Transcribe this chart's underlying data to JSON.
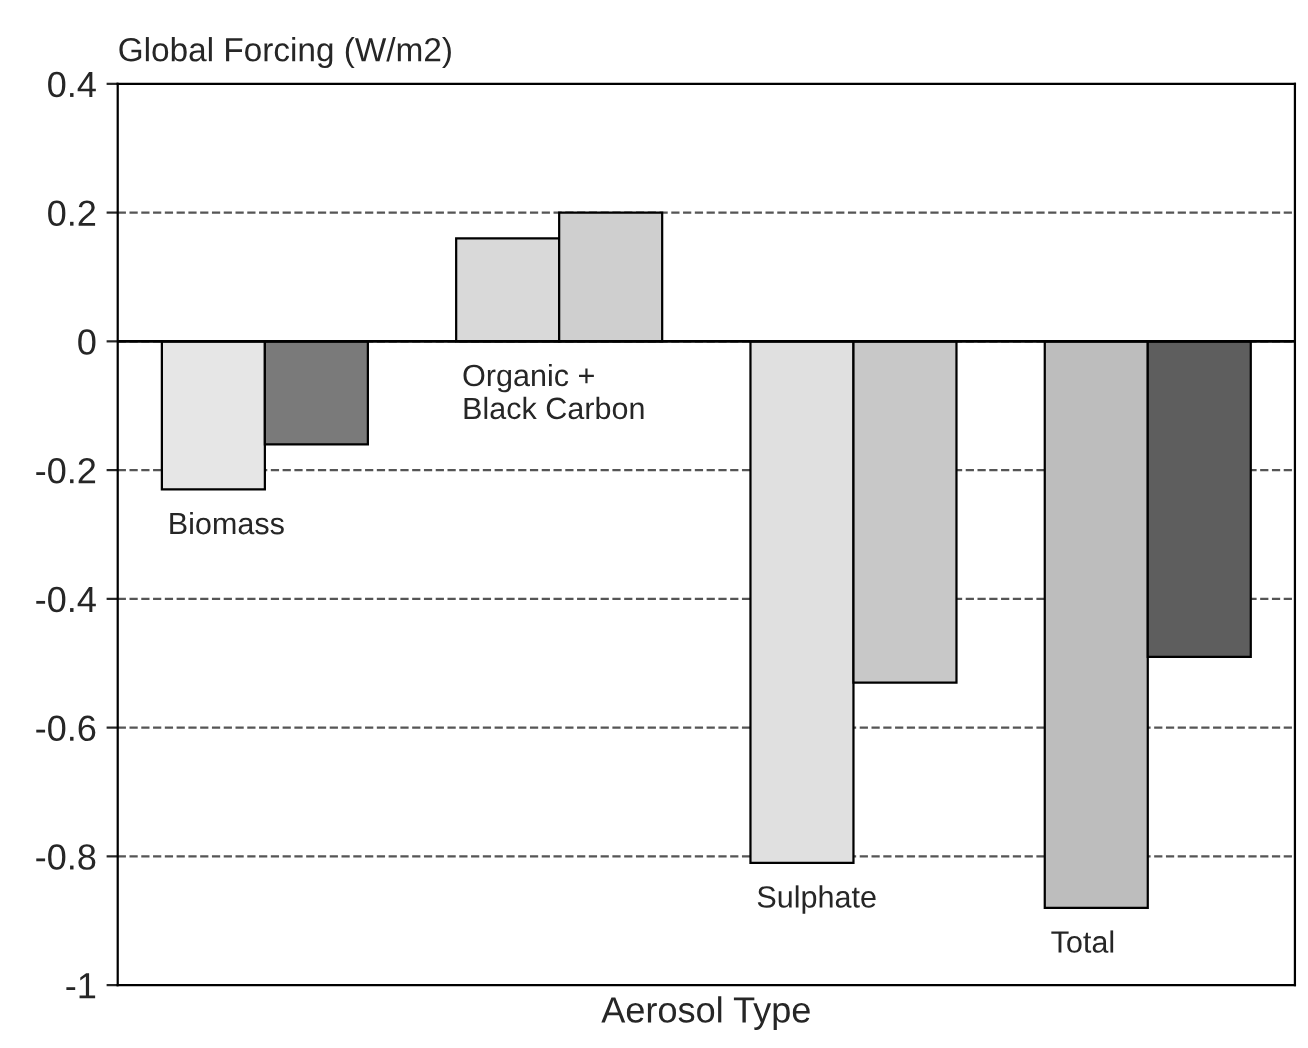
{
  "chart_data": {
    "type": "bar",
    "ylabel": "Global Forcing (W/m2)",
    "xlabel": "Aerosol Type",
    "categories": [
      "Biomass",
      "Organic +\nBlack Carbon",
      "Sulphate",
      "Total"
    ],
    "series": [
      {
        "colors": [
          "#e6e6e6",
          "#d9d9d9",
          "#e0e0e0",
          "#bdbdbd"
        ],
        "values": [
          -0.23,
          0.16,
          -0.81,
          -0.88
        ]
      },
      {
        "colors": [
          "#7a7a7a",
          "#cfcfcf",
          "#c8c8c8",
          "#5e5e5e"
        ],
        "values": [
          -0.16,
          0.2,
          -0.53,
          -0.49
        ]
      }
    ],
    "ylim": [
      -1,
      0.4
    ],
    "yticks": [
      -1,
      -0.8,
      -0.6,
      -0.4,
      -0.2,
      0,
      0.2,
      0.4
    ],
    "grid": "y",
    "legend": false,
    "ref_lines": [
      {
        "axis": "y",
        "value": 0,
        "color": "#000000",
        "line_style": "solid"
      }
    ]
  }
}
